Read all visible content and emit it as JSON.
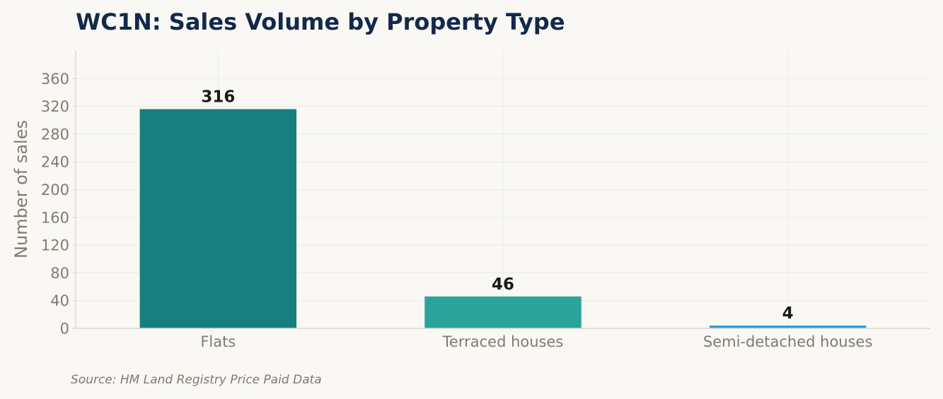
{
  "chart_data": {
    "type": "bar",
    "title": "WC1N: Sales Volume by Property Type",
    "ylabel": "Number of sales",
    "xlabel": "",
    "categories": [
      "Flats",
      "Terraced houses",
      "Semi-detached houses"
    ],
    "values": [
      316,
      46,
      4
    ],
    "value_labels": [
      "316",
      "46",
      "4"
    ],
    "bar_colors": [
      "#177f7e",
      "#2aa39a",
      "#2f9ccd"
    ],
    "ylim": [
      0,
      400
    ],
    "yticks": [
      0,
      40,
      80,
      120,
      160,
      200,
      240,
      280,
      320,
      360
    ],
    "grid": true,
    "source": "Source: HM Land Registry Price Paid Data"
  }
}
